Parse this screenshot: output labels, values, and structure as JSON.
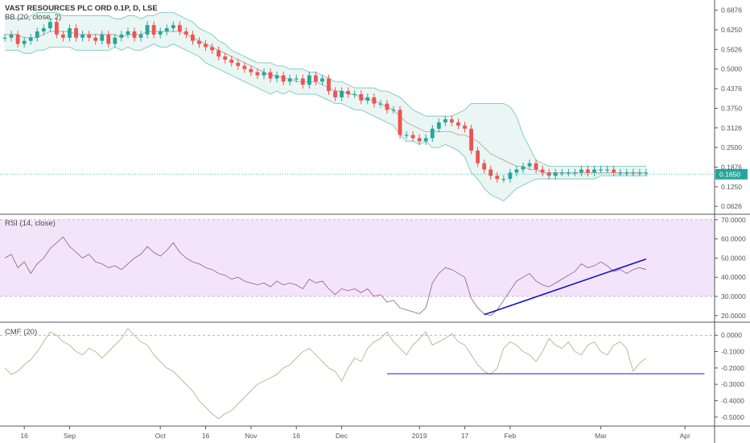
{
  "colors": {
    "up": "#26a69a",
    "down": "#ef5350",
    "bb_fill": "#e9f6f4",
    "bb_band": "#7cc8c0",
    "bb_basis": "#b88a8a",
    "rsi_bg": "#f4e4fa",
    "rsi_line": "#8e5a8e",
    "cmf_line": "#a4b07a",
    "trendline": "#1414c8",
    "trendline_cmf": "#4a4ae0",
    "last_price": "#26a69a"
  },
  "legend": {
    "main_title": "VAST RESOURCES PLC ORD 0.1P, D, LSE",
    "bb": "BB (20, close, 2)",
    "rsi": "RSI (14, close)",
    "cmf": "CMF (20)"
  },
  "chart_data": [
    {
      "type": "candlestick",
      "name": "price",
      "y_ticks": [
        "0.6876",
        "0.6250",
        "0.5626",
        "0.5000",
        "0.4376",
        "0.3750",
        "0.3126",
        "0.2500",
        "0.1876",
        "0.1250",
        "0.0626"
      ],
      "ylim": [
        0.04,
        0.72
      ],
      "last_price": "0.1650",
      "x_ticks": [
        "16",
        "Sep",
        "Oct",
        "16",
        "Nov",
        "16",
        "Dec",
        "2019",
        "17",
        "Feb",
        "Mar",
        "Apr"
      ],
      "close_path": [
        0.6,
        0.61,
        0.58,
        0.59,
        0.6,
        0.62,
        0.63,
        0.65,
        0.61,
        0.6,
        0.63,
        0.6,
        0.61,
        0.6,
        0.59,
        0.61,
        0.58,
        0.6,
        0.61,
        0.62,
        0.6,
        0.61,
        0.64,
        0.61,
        0.62,
        0.63,
        0.64,
        0.62,
        0.61,
        0.59,
        0.58,
        0.57,
        0.56,
        0.54,
        0.53,
        0.52,
        0.51,
        0.5,
        0.49,
        0.48,
        0.49,
        0.47,
        0.48,
        0.46,
        0.47,
        0.47,
        0.45,
        0.48,
        0.46,
        0.47,
        0.43,
        0.41,
        0.43,
        0.42,
        0.42,
        0.4,
        0.41,
        0.39,
        0.39,
        0.37,
        0.37,
        0.29,
        0.29,
        0.28,
        0.27,
        0.28,
        0.31,
        0.33,
        0.34,
        0.33,
        0.32,
        0.31,
        0.24,
        0.2,
        0.18,
        0.16,
        0.15,
        0.15,
        0.17,
        0.18,
        0.19,
        0.2,
        0.18,
        0.17,
        0.16,
        0.17,
        0.17,
        0.17,
        0.17,
        0.18,
        0.17,
        0.18,
        0.18,
        0.18,
        0.17,
        0.17,
        0.17,
        0.17,
        0.17,
        0.17
      ],
      "bb_upper_path": [
        0.67,
        0.66,
        0.66,
        0.66,
        0.67,
        0.68,
        0.68,
        0.68,
        0.68,
        0.67,
        0.67,
        0.67,
        0.67,
        0.67,
        0.67,
        0.67,
        0.67,
        0.66,
        0.66,
        0.67,
        0.67,
        0.66,
        0.67,
        0.67,
        0.68,
        0.68,
        0.68,
        0.67,
        0.66,
        0.65,
        0.63,
        0.62,
        0.61,
        0.59,
        0.58,
        0.56,
        0.55,
        0.54,
        0.53,
        0.52,
        0.52,
        0.52,
        0.51,
        0.51,
        0.5,
        0.5,
        0.5,
        0.49,
        0.49,
        0.48,
        0.47,
        0.46,
        0.46,
        0.45,
        0.44,
        0.44,
        0.44,
        0.44,
        0.43,
        0.43,
        0.42,
        0.41,
        0.39,
        0.37,
        0.36,
        0.35,
        0.35,
        0.35,
        0.35,
        0.35,
        0.36,
        0.37,
        0.39,
        0.39,
        0.39,
        0.39,
        0.39,
        0.39,
        0.38,
        0.35,
        0.29,
        0.25,
        0.21,
        0.2,
        0.19,
        0.19,
        0.19,
        0.19,
        0.19,
        0.19,
        0.19,
        0.19,
        0.19,
        0.19,
        0.19,
        0.19,
        0.19,
        0.19,
        0.19,
        0.19
      ],
      "bb_basis_path": [
        0.61,
        0.61,
        0.61,
        0.6,
        0.6,
        0.6,
        0.61,
        0.62,
        0.62,
        0.62,
        0.62,
        0.61,
        0.61,
        0.61,
        0.61,
        0.61,
        0.61,
        0.61,
        0.6,
        0.61,
        0.61,
        0.61,
        0.62,
        0.62,
        0.62,
        0.62,
        0.62,
        0.62,
        0.61,
        0.6,
        0.59,
        0.58,
        0.57,
        0.56,
        0.55,
        0.54,
        0.53,
        0.52,
        0.51,
        0.5,
        0.49,
        0.48,
        0.48,
        0.47,
        0.47,
        0.46,
        0.46,
        0.46,
        0.46,
        0.45,
        0.44,
        0.43,
        0.43,
        0.42,
        0.42,
        0.41,
        0.4,
        0.4,
        0.39,
        0.38,
        0.37,
        0.35,
        0.33,
        0.32,
        0.31,
        0.3,
        0.3,
        0.3,
        0.3,
        0.3,
        0.29,
        0.29,
        0.28,
        0.27,
        0.25,
        0.23,
        0.22,
        0.21,
        0.2,
        0.19,
        0.19,
        0.18,
        0.18,
        0.17,
        0.17,
        0.17,
        0.17,
        0.17,
        0.17,
        0.17,
        0.17,
        0.17,
        0.17,
        0.17,
        0.17,
        0.17,
        0.17,
        0.17,
        0.17,
        0.17
      ],
      "bb_lower_path": [
        0.56,
        0.56,
        0.56,
        0.55,
        0.55,
        0.56,
        0.56,
        0.57,
        0.57,
        0.57,
        0.57,
        0.56,
        0.56,
        0.56,
        0.56,
        0.56,
        0.56,
        0.57,
        0.56,
        0.57,
        0.56,
        0.56,
        0.57,
        0.58,
        0.57,
        0.57,
        0.58,
        0.57,
        0.56,
        0.55,
        0.54,
        0.52,
        0.51,
        0.5,
        0.49,
        0.48,
        0.47,
        0.46,
        0.45,
        0.44,
        0.43,
        0.42,
        0.43,
        0.42,
        0.43,
        0.42,
        0.42,
        0.42,
        0.42,
        0.41,
        0.4,
        0.39,
        0.39,
        0.38,
        0.37,
        0.37,
        0.36,
        0.35,
        0.34,
        0.33,
        0.32,
        0.29,
        0.27,
        0.27,
        0.26,
        0.27,
        0.25,
        0.25,
        0.26,
        0.25,
        0.24,
        0.22,
        0.17,
        0.15,
        0.12,
        0.1,
        0.09,
        0.08,
        0.1,
        0.12,
        0.13,
        0.14,
        0.15,
        0.15,
        0.15,
        0.15,
        0.15,
        0.15,
        0.15,
        0.15,
        0.15,
        0.15,
        0.16,
        0.16,
        0.16,
        0.16,
        0.16,
        0.16,
        0.16,
        0.16
      ]
    },
    {
      "type": "line",
      "name": "rsi",
      "y_ticks": [
        "70.0000",
        "60.0000",
        "50.0000",
        "40.0000",
        "30.0000",
        "20.0000"
      ],
      "ylim": [
        17,
        72
      ],
      "band": [
        30,
        70
      ],
      "values": [
        50,
        52,
        45,
        48,
        42,
        47,
        50,
        55,
        58,
        61,
        56,
        53,
        50,
        52,
        48,
        47,
        45,
        46,
        44,
        47,
        50,
        52,
        56,
        53,
        51,
        54,
        58,
        53,
        50,
        48,
        47,
        45,
        44,
        42,
        41,
        39,
        40,
        38,
        37,
        36,
        37,
        35,
        38,
        36,
        37,
        36,
        34,
        39,
        37,
        38,
        34,
        31,
        34,
        33,
        34,
        32,
        34,
        30,
        31,
        27,
        28,
        24,
        23,
        22,
        21,
        24,
        37,
        42,
        45,
        44,
        42,
        40,
        29,
        24,
        21,
        20,
        23,
        28,
        33,
        38,
        40,
        42,
        38,
        36,
        35,
        37,
        39,
        41,
        43,
        47,
        45,
        46,
        48,
        46,
        43,
        44,
        42,
        44,
        45,
        44
      ],
      "trendline": [
        [
          74,
          20.5
        ],
        [
          99,
          49.5
        ]
      ]
    },
    {
      "type": "line",
      "name": "cmf",
      "y_ticks": [
        "0.0000",
        "-0.1000",
        "-0.2000",
        "-0.3000",
        "-0.4000",
        "-0.5000"
      ],
      "ylim": [
        -0.55,
        0.07
      ],
      "values": [
        -0.2,
        -0.24,
        -0.22,
        -0.18,
        -0.15,
        -0.1,
        -0.04,
        0.02,
        0.0,
        -0.04,
        -0.06,
        -0.1,
        -0.12,
        -0.08,
        -0.1,
        -0.14,
        -0.1,
        -0.06,
        -0.02,
        0.04,
        0.0,
        -0.04,
        -0.06,
        -0.12,
        -0.16,
        -0.2,
        -0.22,
        -0.26,
        -0.3,
        -0.34,
        -0.4,
        -0.44,
        -0.48,
        -0.51,
        -0.48,
        -0.46,
        -0.42,
        -0.38,
        -0.34,
        -0.3,
        -0.28,
        -0.26,
        -0.24,
        -0.2,
        -0.18,
        -0.14,
        -0.1,
        -0.08,
        -0.12,
        -0.16,
        -0.2,
        -0.22,
        -0.28,
        -0.2,
        -0.14,
        -0.16,
        -0.08,
        -0.04,
        -0.02,
        0.02,
        -0.04,
        -0.08,
        -0.12,
        -0.06,
        -0.02,
        0.02,
        -0.06,
        -0.04,
        -0.02,
        0.01,
        -0.04,
        -0.06,
        -0.12,
        -0.18,
        -0.22,
        -0.24,
        -0.2,
        -0.08,
        -0.04,
        -0.06,
        -0.1,
        -0.12,
        -0.16,
        -0.1,
        -0.02,
        -0.06,
        -0.08,
        -0.04,
        -0.1,
        -0.12,
        -0.06,
        -0.04,
        -0.1,
        -0.12,
        -0.06,
        -0.04,
        -0.08,
        -0.22,
        -0.17,
        -0.14
      ],
      "reference_line": 0,
      "trendline": [
        [
          59,
          -0.235
        ],
        [
          108,
          -0.235
        ]
      ]
    }
  ]
}
